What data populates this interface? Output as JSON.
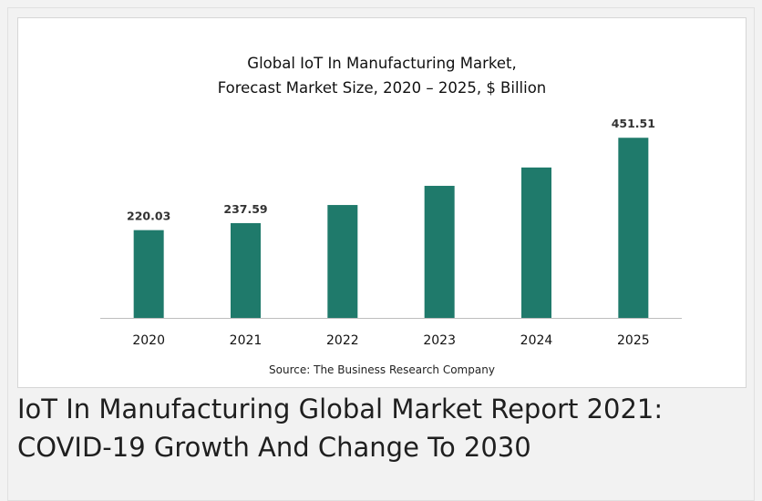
{
  "chart_data": {
    "type": "bar",
    "title_lines": [
      "Global IoT In Manufacturing Market,",
      "Forecast Market Size, 2020 – 2025, $ Billion"
    ],
    "categories": [
      "2020",
      "2021",
      "2022",
      "2023",
      "2024",
      "2025"
    ],
    "values": [
      220.03,
      237.59,
      283,
      331,
      377,
      451.51
    ],
    "data_labels": [
      "220.03",
      "237.59",
      "",
      "",
      "",
      "451.51"
    ],
    "ylim": [
      0,
      500
    ],
    "source": "Source: The Business Research Company",
    "bar_color": "#1f7a6b",
    "grid": false
  },
  "caption": {
    "line1": "IoT In Manufacturing Global Market Report 2021:",
    "line2": "COVID-19 Growth And Change To 2030"
  }
}
